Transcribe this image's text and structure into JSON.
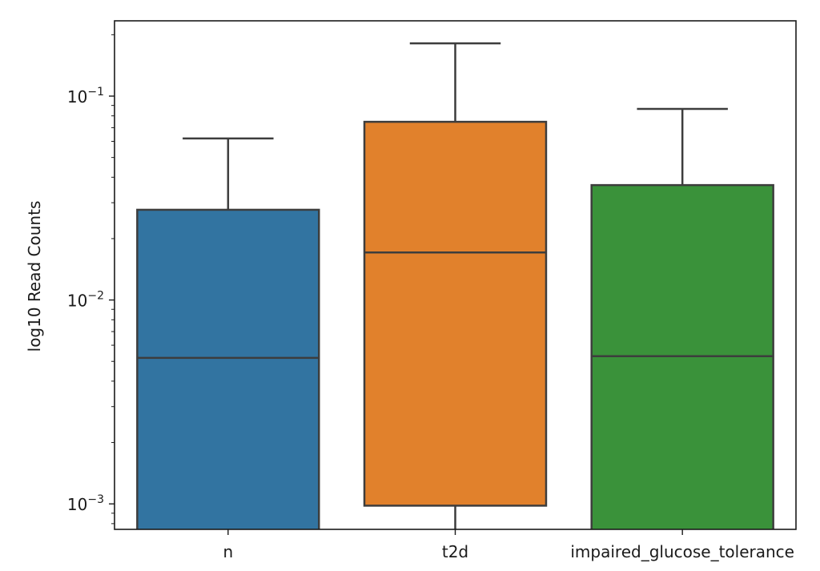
{
  "chart_data": {
    "type": "box",
    "title": "",
    "xlabel": "",
    "ylabel": "log10 Read Counts",
    "yscale": "log",
    "ylim": [
      0.00075,
      0.234
    ],
    "grid": false,
    "y_ticks": [
      {
        "value": 0.1,
        "base": "10",
        "exp": "−1"
      },
      {
        "value": 0.01,
        "base": "10",
        "exp": "−2"
      },
      {
        "value": 0.001,
        "base": "10",
        "exp": "−3"
      }
    ],
    "categories": [
      "n",
      "t2d",
      "impaired_glucose_tolerance"
    ],
    "colors": [
      "#3274a1",
      "#e1812c",
      "#3a923a"
    ],
    "edge_color": "#3d3d3d",
    "boxes": [
      {
        "category": "n",
        "whisker_low": null,
        "q1": null,
        "median": 0.0052,
        "q3": 0.0277,
        "whisker_high": 0.062
      },
      {
        "category": "t2d",
        "whisker_low": null,
        "q1": 0.00098,
        "median": 0.0171,
        "q3": 0.0748,
        "whisker_high": 0.1815
      },
      {
        "category": "impaired_glucose_tolerance",
        "whisker_low": null,
        "q1": null,
        "median": 0.0053,
        "q3": 0.0366,
        "whisker_high": 0.0865
      }
    ]
  }
}
